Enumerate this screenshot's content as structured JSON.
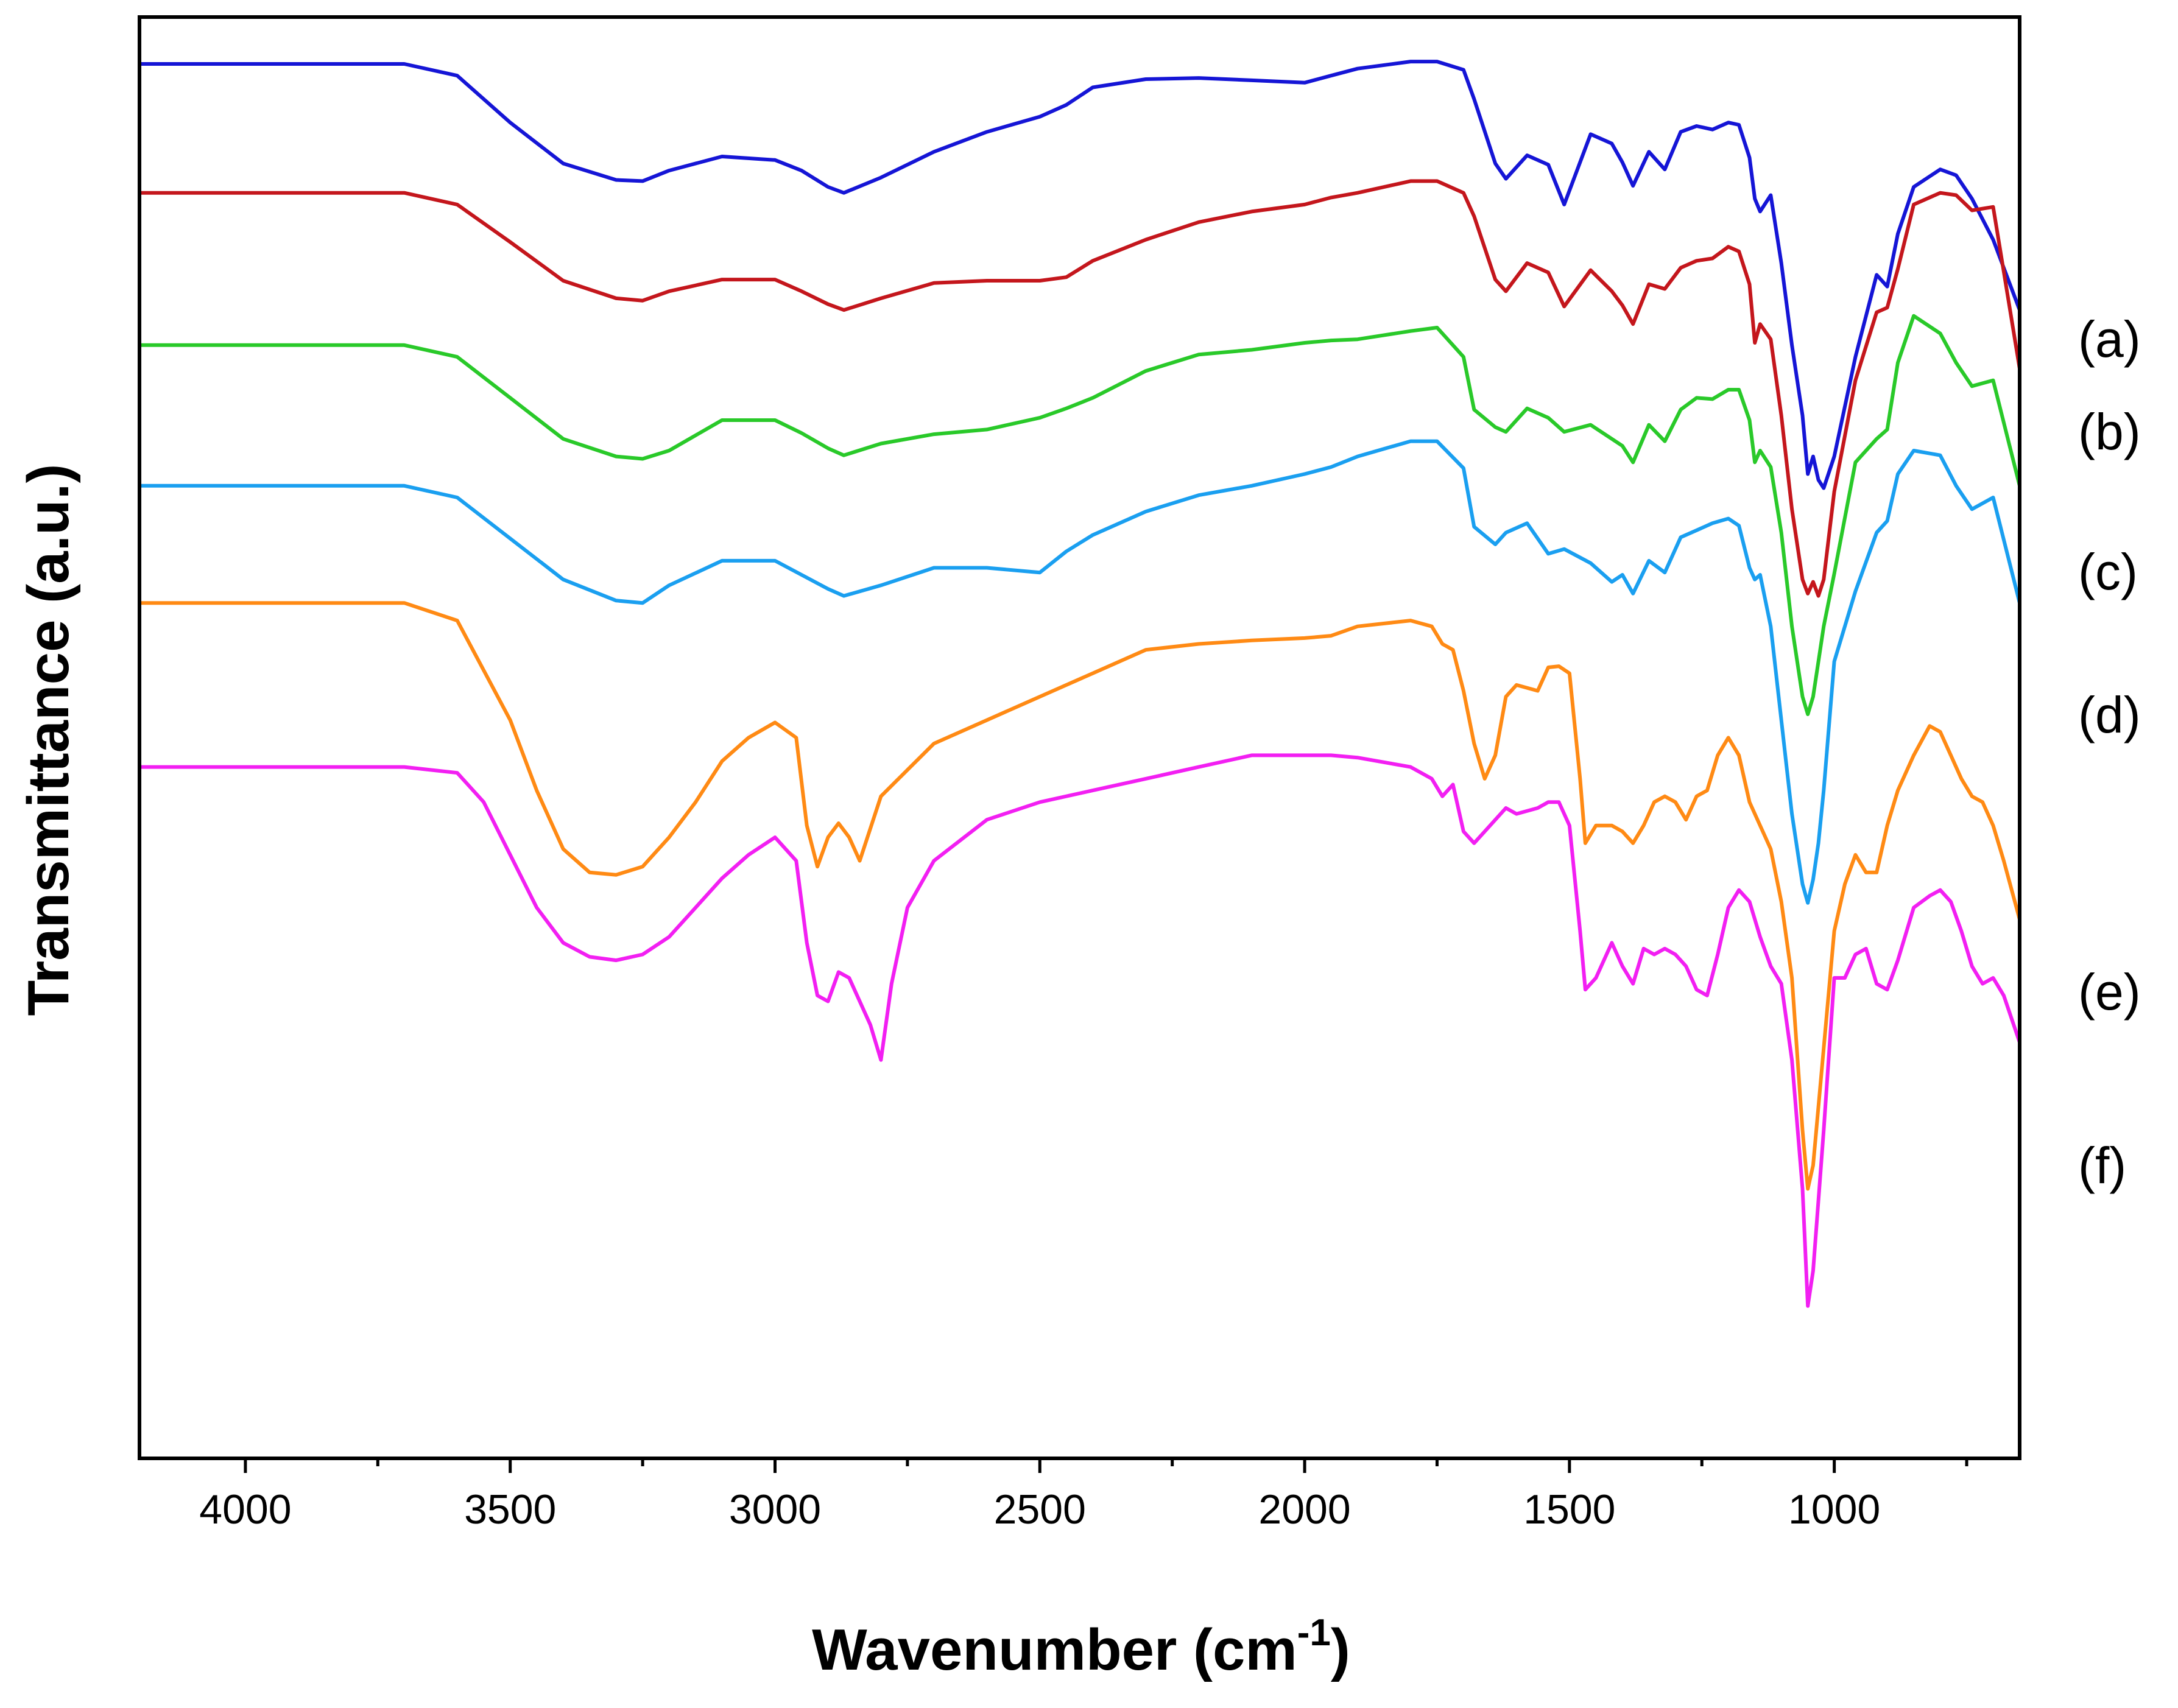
{
  "chart_data": {
    "type": "line",
    "title": "",
    "xlabel": "Wavenumber (cm",
    "xlabel_sup": "-1",
    "xlabel_close": ")",
    "ylabel": "Transmittance (a.u.)",
    "xlim": [
      4200,
      650
    ],
    "ylim": [
      -23,
      100
    ],
    "x_ticks": [
      4000,
      3500,
      3000,
      2500,
      2000,
      1500,
      1000
    ],
    "x_tick_labels": [
      "4000",
      "3500",
      "3000",
      "2500",
      "2000",
      "1500",
      "1000"
    ],
    "y_ticks": [],
    "grid": false,
    "legend": "right",
    "series": [
      {
        "name": "(a)",
        "color": "#1515d6",
        "x": [
          4200,
          3700,
          3600,
          3500,
          3400,
          3300,
          3250,
          3200,
          3100,
          3000,
          2950,
          2900,
          2870,
          2800,
          2700,
          2600,
          2500,
          2450,
          2400,
          2300,
          2200,
          2100,
          2000,
          1950,
          1900,
          1800,
          1750,
          1700,
          1680,
          1640,
          1620,
          1580,
          1540,
          1510,
          1460,
          1420,
          1400,
          1380,
          1350,
          1320,
          1290,
          1260,
          1230,
          1200,
          1180,
          1160,
          1150,
          1140,
          1120,
          1100,
          1080,
          1060,
          1050,
          1040,
          1030,
          1020,
          1000,
          960,
          920,
          900,
          880,
          850,
          800,
          770,
          740,
          700,
          650
        ],
        "y": [
          96.0,
          96.0,
          95.0,
          91.0,
          87.5,
          86.1,
          86.0,
          86.9,
          88.1,
          87.8,
          86.9,
          85.5,
          85.0,
          86.3,
          88.5,
          90.2,
          91.5,
          92.5,
          94.0,
          94.7,
          94.8,
          94.6,
          94.4,
          95.0,
          95.6,
          96.2,
          96.2,
          95.5,
          93.0,
          87.5,
          86.2,
          88.2,
          87.4,
          84.0,
          90.0,
          89.2,
          87.6,
          85.6,
          88.5,
          87.0,
          90.2,
          90.7,
          90.4,
          91.0,
          90.8,
          88.0,
          84.5,
          83.4,
          84.8,
          79.0,
          72.0,
          66.0,
          61.0,
          62.5,
          60.5,
          59.8,
          62.5,
          71.0,
          78.0,
          77.0,
          81.5,
          85.5,
          87.0,
          86.5,
          84.5,
          81.0,
          75.0
        ]
      },
      {
        "name": "(b)",
        "color": "#c4161c",
        "x": [
          4200,
          3700,
          3600,
          3500,
          3400,
          3300,
          3250,
          3200,
          3100,
          3000,
          2950,
          2900,
          2870,
          2800,
          2700,
          2600,
          2500,
          2450,
          2400,
          2300,
          2200,
          2100,
          2000,
          1950,
          1900,
          1800,
          1750,
          1700,
          1680,
          1640,
          1620,
          1580,
          1540,
          1510,
          1460,
          1420,
          1400,
          1380,
          1350,
          1320,
          1290,
          1260,
          1230,
          1200,
          1180,
          1160,
          1150,
          1140,
          1120,
          1100,
          1080,
          1060,
          1050,
          1040,
          1030,
          1020,
          1000,
          960,
          920,
          900,
          880,
          850,
          800,
          770,
          740,
          700,
          650
        ],
        "y": [
          85.0,
          85.0,
          84.0,
          80.8,
          77.5,
          76.0,
          75.8,
          76.6,
          77.6,
          77.6,
          76.6,
          75.5,
          75.0,
          76.0,
          77.3,
          77.5,
          77.5,
          77.8,
          79.2,
          81.0,
          82.5,
          83.4,
          84.0,
          84.6,
          85.0,
          86.0,
          86.0,
          85.0,
          83.0,
          77.6,
          76.6,
          79.0,
          78.2,
          75.3,
          78.4,
          76.6,
          75.4,
          73.8,
          77.2,
          76.8,
          78.6,
          79.2,
          79.4,
          80.4,
          80.0,
          77.2,
          72.2,
          73.8,
          72.5,
          66.0,
          58.0,
          52.0,
          50.8,
          51.8,
          50.6,
          52.0,
          59.5,
          69.0,
          74.8,
          75.2,
          78.5,
          84.0,
          85.0,
          84.8,
          83.5,
          83.8,
          70.0
        ]
      },
      {
        "name": "(c)",
        "color": "#29c929",
        "x": [
          4200,
          3700,
          3600,
          3500,
          3400,
          3300,
          3250,
          3200,
          3100,
          3000,
          2950,
          2900,
          2870,
          2800,
          2700,
          2600,
          2500,
          2450,
          2400,
          2300,
          2200,
          2100,
          2000,
          1950,
          1900,
          1800,
          1750,
          1700,
          1680,
          1640,
          1620,
          1580,
          1540,
          1510,
          1460,
          1420,
          1400,
          1380,
          1350,
          1320,
          1290,
          1260,
          1230,
          1200,
          1180,
          1160,
          1150,
          1140,
          1120,
          1100,
          1080,
          1060,
          1050,
          1040,
          1030,
          1020,
          1000,
          960,
          920,
          900,
          880,
          850,
          800,
          770,
          740,
          700,
          650
        ],
        "y": [
          72.0,
          72.0,
          71.0,
          67.5,
          64.0,
          62.5,
          62.3,
          63.0,
          65.6,
          65.6,
          64.5,
          63.2,
          62.6,
          63.6,
          64.4,
          64.8,
          65.8,
          66.6,
          67.5,
          69.8,
          71.2,
          71.6,
          72.2,
          72.4,
          72.5,
          73.2,
          73.5,
          71.0,
          66.5,
          65.0,
          64.6,
          66.6,
          65.8,
          64.6,
          65.2,
          64.0,
          63.4,
          62.0,
          65.2,
          63.8,
          66.5,
          67.5,
          67.4,
          68.2,
          68.2,
          65.6,
          62.0,
          63.0,
          61.6,
          56.0,
          48.0,
          42.0,
          40.5,
          42.0,
          45.0,
          48.0,
          52.5,
          62.0,
          64.0,
          64.8,
          70.5,
          74.5,
          73.0,
          70.5,
          68.5,
          69.0,
          60.0
        ]
      },
      {
        "name": "(d)",
        "color": "#1a9ff0",
        "x": [
          4200,
          3700,
          3600,
          3500,
          3400,
          3300,
          3250,
          3200,
          3100,
          3000,
          2950,
          2900,
          2870,
          2800,
          2700,
          2600,
          2500,
          2450,
          2400,
          2300,
          2200,
          2100,
          2000,
          1950,
          1900,
          1800,
          1750,
          1700,
          1680,
          1640,
          1620,
          1580,
          1540,
          1510,
          1460,
          1420,
          1400,
          1380,
          1350,
          1320,
          1290,
          1260,
          1230,
          1200,
          1180,
          1160,
          1150,
          1140,
          1120,
          1100,
          1080,
          1060,
          1050,
          1040,
          1030,
          1020,
          1000,
          960,
          920,
          900,
          880,
          850,
          800,
          770,
          740,
          700,
          650
        ],
        "y": [
          60.0,
          60.0,
          59.0,
          55.5,
          52.0,
          50.2,
          50.0,
          51.5,
          53.6,
          53.6,
          52.4,
          51.2,
          50.6,
          51.5,
          53.0,
          53.0,
          52.6,
          54.4,
          55.8,
          57.8,
          59.2,
          60.0,
          61.0,
          61.6,
          62.5,
          63.8,
          63.8,
          61.5,
          56.5,
          55.0,
          56.0,
          56.8,
          54.2,
          54.6,
          53.4,
          51.8,
          52.4,
          50.8,
          53.6,
          52.6,
          55.6,
          56.2,
          56.8,
          57.2,
          56.6,
          53.0,
          52.0,
          52.4,
          48.0,
          40.0,
          32.0,
          26.0,
          24.4,
          26.4,
          29.5,
          34.0,
          45.0,
          51.0,
          56.0,
          57.0,
          61.0,
          63.0,
          62.6,
          60.0,
          58.0,
          59.0,
          50.0
        ]
      },
      {
        "name": "(e)",
        "color": "#ff8a14",
        "x": [
          4200,
          3700,
          3600,
          3500,
          3450,
          3400,
          3350,
          3300,
          3250,
          3200,
          3150,
          3100,
          3050,
          3000,
          2960,
          2940,
          2920,
          2900,
          2880,
          2860,
          2840,
          2800,
          2700,
          2600,
          2500,
          2400,
          2300,
          2200,
          2100,
          2000,
          1950,
          1900,
          1800,
          1760,
          1740,
          1720,
          1700,
          1680,
          1660,
          1640,
          1620,
          1600,
          1560,
          1540,
          1520,
          1500,
          1480,
          1470,
          1450,
          1420,
          1400,
          1380,
          1360,
          1340,
          1320,
          1300,
          1280,
          1260,
          1240,
          1220,
          1200,
          1180,
          1160,
          1140,
          1120,
          1100,
          1080,
          1060,
          1050,
          1040,
          1020,
          1000,
          980,
          960,
          940,
          920,
          900,
          880,
          850,
          820,
          800,
          780,
          760,
          740,
          720,
          700,
          680,
          650
        ],
        "y": [
          50.0,
          50.0,
          48.5,
          40.0,
          34.0,
          29.0,
          27.0,
          26.8,
          27.5,
          30.0,
          33.0,
          36.5,
          38.5,
          39.8,
          38.5,
          31.0,
          27.5,
          30.0,
          31.2,
          30.0,
          28.0,
          33.5,
          38.0,
          40.0,
          42.0,
          44.0,
          46.0,
          46.5,
          46.8,
          47.0,
          47.2,
          48.0,
          48.5,
          48.0,
          46.5,
          46.0,
          42.5,
          38.0,
          35.0,
          37.0,
          42.0,
          43.0,
          42.5,
          44.5,
          44.6,
          44.0,
          35.0,
          29.5,
          31.0,
          31.0,
          30.5,
          29.5,
          31.0,
          33.0,
          33.5,
          33.0,
          31.5,
          33.5,
          34.0,
          37.0,
          38.5,
          37.0,
          33.0,
          31.0,
          29.0,
          24.5,
          18.0,
          5.0,
          0.0,
          2.0,
          12.0,
          22.0,
          26.0,
          28.5,
          27.0,
          27.0,
          31.0,
          34.0,
          37.0,
          39.5,
          39.0,
          37.0,
          35.0,
          33.5,
          33.0,
          31.0,
          28.0,
          23.0
        ]
      },
      {
        "name": "(f)",
        "color": "#f21ff2",
        "x": [
          4200,
          3700,
          3600,
          3550,
          3500,
          3450,
          3400,
          3350,
          3300,
          3250,
          3200,
          3150,
          3100,
          3050,
          3000,
          2960,
          2940,
          2920,
          2900,
          2880,
          2860,
          2840,
          2820,
          2800,
          2780,
          2750,
          2700,
          2600,
          2500,
          2400,
          2300,
          2200,
          2100,
          2000,
          1950,
          1900,
          1800,
          1760,
          1740,
          1720,
          1700,
          1680,
          1660,
          1640,
          1620,
          1600,
          1560,
          1540,
          1520,
          1500,
          1480,
          1470,
          1450,
          1420,
          1400,
          1380,
          1360,
          1340,
          1320,
          1300,
          1280,
          1260,
          1240,
          1220,
          1200,
          1180,
          1160,
          1140,
          1120,
          1100,
          1080,
          1060,
          1050,
          1040,
          1020,
          1000,
          980,
          960,
          940,
          920,
          900,
          880,
          850,
          820,
          800,
          780,
          760,
          740,
          720,
          700,
          680,
          650
        ],
        "y": [
          36.0,
          36.0,
          35.5,
          33.0,
          28.5,
          24.0,
          21.0,
          19.8,
          19.5,
          20.0,
          21.5,
          24.0,
          26.5,
          28.5,
          30.0,
          28.0,
          21.0,
          16.5,
          16.0,
          18.5,
          18.0,
          16.0,
          14.0,
          11.0,
          17.5,
          24.0,
          28.0,
          31.5,
          33.0,
          34.0,
          35.0,
          36.0,
          37.0,
          37.0,
          37.0,
          36.8,
          36.0,
          35.0,
          33.5,
          34.5,
          30.5,
          29.5,
          30.5,
          31.5,
          32.5,
          32.0,
          32.5,
          33.0,
          33.0,
          31.0,
          22.0,
          17.0,
          18.0,
          21.0,
          19.0,
          17.5,
          20.5,
          20.0,
          20.5,
          20.0,
          19.0,
          17.0,
          16.5,
          20.0,
          24.0,
          25.5,
          24.5,
          21.5,
          19.0,
          17.5,
          11.0,
          0.0,
          -10.0,
          -7.0,
          5.0,
          18.0,
          18.0,
          20.0,
          20.5,
          17.5,
          17.0,
          19.5,
          24.0,
          25.0,
          25.5,
          24.5,
          22.0,
          19.0,
          17.5,
          18.0,
          16.5,
          12.5
        ]
      }
    ]
  }
}
